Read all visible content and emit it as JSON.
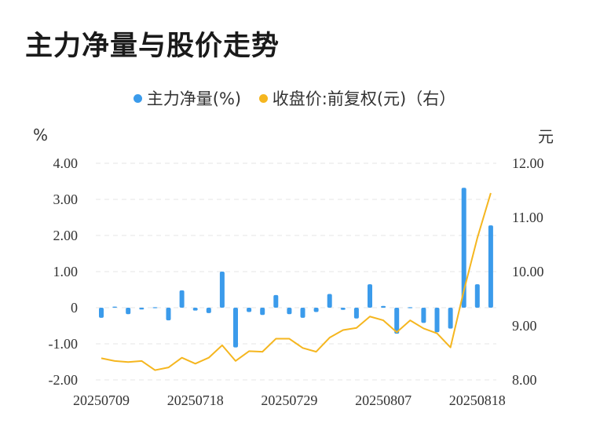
{
  "title": "主力净量与股价走势",
  "legend": {
    "bar_label": "主力净量(%)",
    "line_label": "收盘价:前复权(元)（右）"
  },
  "units": {
    "left": "%",
    "right": "元"
  },
  "colors": {
    "bar": "#3B9BEB",
    "line": "#F5B61F",
    "grid": "#e6e6e6"
  },
  "chart_data": {
    "type": "bar+line",
    "title": "主力净量与股价走势",
    "x_tick_labels": [
      "20250709",
      "20250718",
      "20250729",
      "20250807",
      "20250818"
    ],
    "x_tick_positions": [
      0,
      7,
      14,
      21,
      28
    ],
    "left_axis": {
      "unit": "%",
      "ylim": [
        -2,
        4
      ],
      "ticks": [
        "-2.00",
        "-1.00",
        "0",
        "1.00",
        "2.00",
        "3.00",
        "4.00"
      ]
    },
    "right_axis": {
      "unit": "元",
      "ylim": [
        8,
        12
      ],
      "ticks": [
        "8.00",
        "9.00",
        "10.00",
        "11.00",
        "12.00"
      ]
    },
    "series": [
      {
        "name": "主力净量(%)",
        "type": "bar",
        "axis": "left",
        "values": [
          -0.28,
          0.03,
          -0.18,
          -0.05,
          0.02,
          -0.35,
          0.48,
          -0.08,
          -0.15,
          1.0,
          -1.1,
          -0.12,
          -0.2,
          0.35,
          -0.18,
          -0.28,
          -0.12,
          0.38,
          -0.06,
          -0.3,
          0.65,
          0.05,
          -0.72,
          0.0,
          -0.42,
          -0.68,
          -0.58,
          3.32,
          0.65,
          2.28
        ]
      },
      {
        "name": "收盘价:前复权(元)（右）",
        "type": "line",
        "axis": "right",
        "values": [
          8.4,
          8.35,
          8.33,
          8.35,
          8.18,
          8.23,
          8.41,
          8.3,
          8.41,
          8.64,
          8.35,
          8.53,
          8.52,
          8.76,
          8.76,
          8.59,
          8.52,
          8.78,
          8.92,
          8.96,
          9.17,
          9.1,
          8.88,
          9.1,
          8.95,
          8.86,
          8.6,
          9.65,
          10.62,
          11.45
        ]
      }
    ]
  }
}
